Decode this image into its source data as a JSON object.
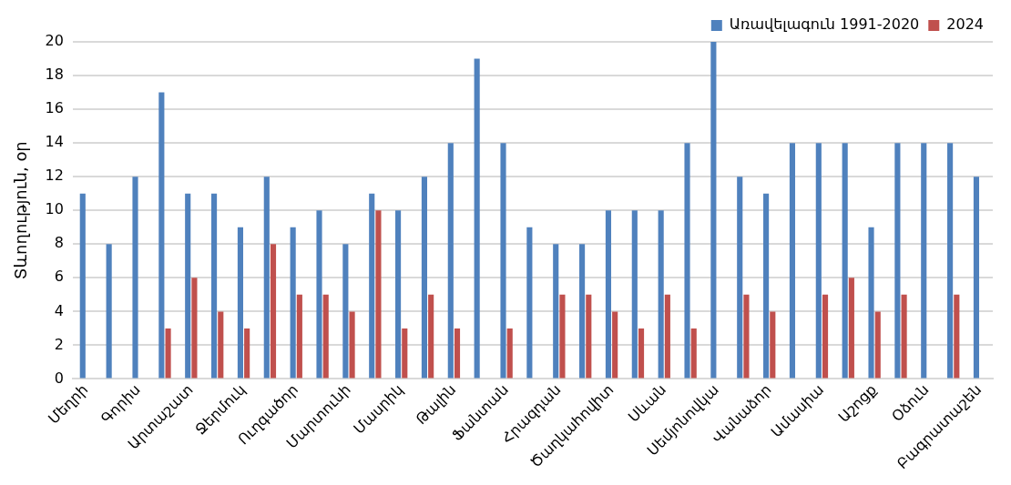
{
  "chart_data": {
    "type": "bar",
    "ylabel": "Տևողություն, օր",
    "categories": [
      "Մեղրի",
      null,
      "Գորիս",
      null,
      "Արտաշատ",
      null,
      "Ջերմուկ",
      null,
      "Ուղգածոր",
      null,
      "Մարտունի",
      null,
      "Մասրիկ",
      null,
      "Թալին",
      null,
      "Ֆանտան",
      null,
      "Հրազդան",
      null,
      "Ծաղկահովիտ",
      null,
      "Սևան",
      null,
      "Սեմյոնովկա",
      null,
      "Վանաձոր",
      null,
      "Ամասիա",
      null,
      "Աշոցք",
      null,
      "Օձուն",
      null,
      "Բագրատաշեն"
    ],
    "series": [
      {
        "name": "Առավելագուն 1991-2020",
        "color": "#4f81bd",
        "values": [
          11,
          8,
          12,
          17,
          11,
          11,
          9,
          12,
          9,
          10,
          8,
          11,
          10,
          12,
          14,
          19,
          14,
          9,
          8,
          8,
          10,
          10,
          10,
          14,
          20,
          12,
          11,
          14,
          14,
          14,
          9,
          14,
          14,
          14,
          12
        ]
      },
      {
        "name": "2024",
        "color": "#c0504d",
        "values": [
          null,
          null,
          null,
          3,
          6,
          4,
          3,
          8,
          5,
          5,
          4,
          10,
          3,
          5,
          3,
          null,
          3,
          null,
          5,
          5,
          4,
          3,
          5,
          3,
          null,
          5,
          4,
          null,
          5,
          6,
          4,
          5,
          null,
          5,
          null
        ]
      }
    ],
    "ylim": [
      0,
      20
    ],
    "yticks": [
      0,
      2,
      4,
      6,
      8,
      10,
      12,
      14,
      16,
      18,
      20
    ],
    "grid": "y",
    "legend": "top right"
  }
}
